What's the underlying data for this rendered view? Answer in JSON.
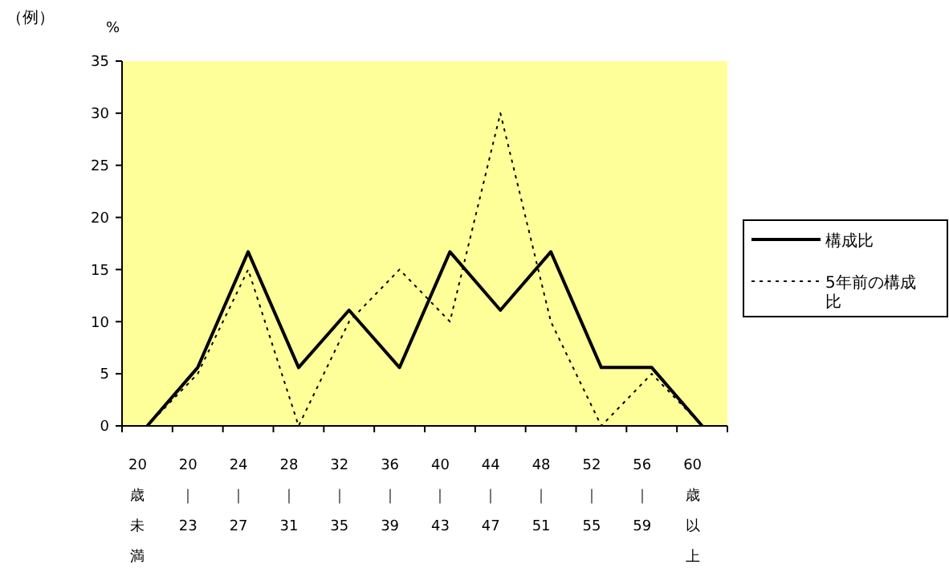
{
  "chart_data": {
    "type": "line",
    "ylabel": "%",
    "annotations": [
      "（例）"
    ],
    "categories": [
      "20歳未満",
      "20｜23",
      "24｜27",
      "28｜31",
      "32｜35",
      "36｜39",
      "40｜43",
      "44｜47",
      "48｜51",
      "52｜55",
      "56｜59",
      "60歳以上"
    ],
    "series": [
      {
        "name": "構成比",
        "color": "#000000",
        "line_style": "solid",
        "values": [
          0,
          5.6,
          16.7,
          5.6,
          11.1,
          5.6,
          16.7,
          11.1,
          16.7,
          5.6,
          5.6,
          0
        ]
      },
      {
        "name": "5年前の構成比",
        "color": "#000000",
        "line_style": "dotted",
        "values": [
          0,
          5,
          15,
          0,
          10,
          15,
          10,
          30,
          10,
          0,
          5,
          0
        ]
      }
    ],
    "ylim": [
      0,
      35
    ],
    "yticks": [
      0,
      5,
      10,
      15,
      20,
      25,
      30,
      35
    ],
    "grid": false,
    "legend": "right",
    "marker": "none"
  }
}
